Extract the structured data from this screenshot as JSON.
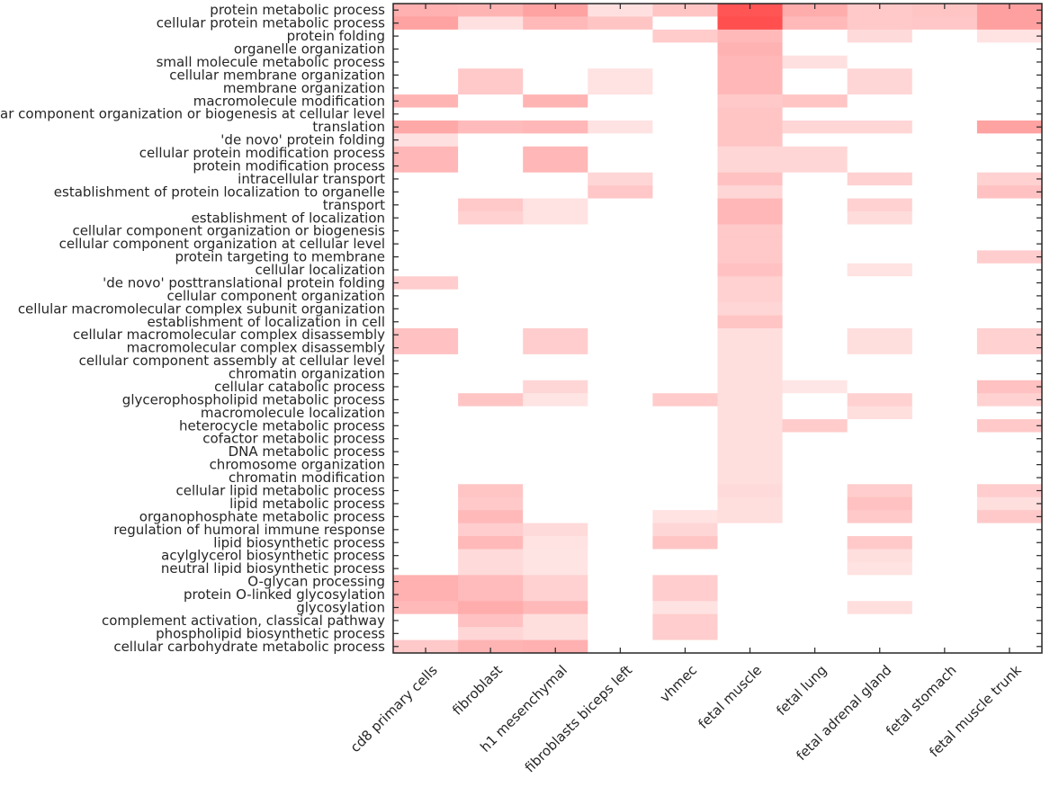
{
  "chart_data": {
    "type": "heatmap",
    "title": "",
    "xlabel": "",
    "ylabel": "",
    "colormap": {
      "low": "#ffffff",
      "high": "#ff3030"
    },
    "value_range": [
      0,
      1
    ],
    "columns": [
      "cd8 primary cells",
      "fibroblast",
      "h1 mesenchymal",
      "fibroblasts biceps left",
      "vhmec",
      "fetal muscle",
      "fetal lung",
      "fetal adrenal gland",
      "fetal stomach",
      "fetal muscle trunk"
    ],
    "rows": [
      "protein metabolic process",
      "cellular protein metabolic process",
      "protein folding",
      "organelle organization",
      "small molecule metabolic process",
      "cellular membrane organization",
      "membrane organization",
      "macromolecule modification",
      "cellular component organization or biogenesis at cellular level",
      "translation",
      "'de novo' protein folding",
      "cellular protein modification process",
      "protein modification process",
      "intracellular transport",
      "establishment of protein localization to organelle",
      "transport",
      "establishment of localization",
      "cellular component organization or biogenesis",
      "cellular component organization at cellular level",
      "protein targeting to membrane",
      "cellular localization",
      "'de novo' posttranslational protein folding",
      "cellular component organization",
      "cellular macromolecular complex subunit organization",
      "establishment of localization in cell",
      "cellular macromolecular complex disassembly",
      "macromolecular complex disassembly",
      "cellular component assembly at cellular level",
      "chromatin organization",
      "cellular catabolic process",
      "glycerophospholipid metabolic process",
      "macromolecule localization",
      "heterocycle metabolic process",
      "cofactor metabolic process",
      "DNA metabolic process",
      "chromosome organization",
      "chromatin modification",
      "cellular lipid metabolic process",
      "lipid metabolic process",
      "organophosphate metabolic process",
      "regulation of humoral immune response",
      "lipid biosynthetic process",
      "acylglycerol biosynthetic process",
      "neutral lipid biosynthetic process",
      "O-glycan processing",
      "protein O-linked glycosylation",
      "glycosylation",
      "complement activation, classical pathway",
      "phospholipid biosynthetic process",
      "cellular carbohydrate metabolic process"
    ],
    "values": [
      [
        0.38,
        0.36,
        0.45,
        0.15,
        0.28,
        0.82,
        0.4,
        0.26,
        0.28,
        0.46
      ],
      [
        0.45,
        0.15,
        0.34,
        0.28,
        0.0,
        0.85,
        0.34,
        0.26,
        0.27,
        0.46
      ],
      [
        0.0,
        0.0,
        0.0,
        0.0,
        0.25,
        0.34,
        0.0,
        0.18,
        0.0,
        0.14
      ],
      [
        0.0,
        0.0,
        0.0,
        0.0,
        0.0,
        0.37,
        0.0,
        0.0,
        0.0,
        0.0
      ],
      [
        0.0,
        0.0,
        0.0,
        0.0,
        0.0,
        0.35,
        0.15,
        0.0,
        0.0,
        0.0
      ],
      [
        0.0,
        0.26,
        0.0,
        0.14,
        0.0,
        0.35,
        0.0,
        0.2,
        0.0,
        0.0
      ],
      [
        0.0,
        0.26,
        0.0,
        0.14,
        0.0,
        0.35,
        0.0,
        0.2,
        0.0,
        0.0
      ],
      [
        0.36,
        0.0,
        0.36,
        0.0,
        0.0,
        0.26,
        0.28,
        0.0,
        0.0,
        0.0
      ],
      [
        0.0,
        0.0,
        0.0,
        0.0,
        0.0,
        0.28,
        0.0,
        0.0,
        0.0,
        0.0
      ],
      [
        0.42,
        0.33,
        0.35,
        0.14,
        0.0,
        0.28,
        0.2,
        0.2,
        0.0,
        0.45
      ],
      [
        0.15,
        0.0,
        0.0,
        0.0,
        0.0,
        0.28,
        0.0,
        0.0,
        0.0,
        0.0
      ],
      [
        0.35,
        0.0,
        0.35,
        0.0,
        0.0,
        0.2,
        0.2,
        0.0,
        0.0,
        0.0
      ],
      [
        0.35,
        0.0,
        0.35,
        0.0,
        0.0,
        0.2,
        0.2,
        0.0,
        0.0,
        0.0
      ],
      [
        0.0,
        0.0,
        0.0,
        0.2,
        0.0,
        0.3,
        0.0,
        0.22,
        0.0,
        0.22
      ],
      [
        0.0,
        0.0,
        0.0,
        0.27,
        0.0,
        0.2,
        0.0,
        0.0,
        0.0,
        0.3
      ],
      [
        0.0,
        0.26,
        0.14,
        0.0,
        0.0,
        0.35,
        0.0,
        0.22,
        0.0,
        0.0
      ],
      [
        0.0,
        0.22,
        0.14,
        0.0,
        0.0,
        0.35,
        0.0,
        0.17,
        0.0,
        0.0
      ],
      [
        0.0,
        0.0,
        0.0,
        0.0,
        0.0,
        0.26,
        0.0,
        0.0,
        0.0,
        0.0
      ],
      [
        0.0,
        0.0,
        0.0,
        0.0,
        0.0,
        0.26,
        0.0,
        0.0,
        0.0,
        0.0
      ],
      [
        0.0,
        0.0,
        0.0,
        0.0,
        0.0,
        0.26,
        0.0,
        0.0,
        0.0,
        0.24
      ],
      [
        0.0,
        0.0,
        0.0,
        0.0,
        0.0,
        0.3,
        0.0,
        0.14,
        0.0,
        0.0
      ],
      [
        0.24,
        0.0,
        0.0,
        0.0,
        0.0,
        0.22,
        0.0,
        0.0,
        0.0,
        0.0
      ],
      [
        0.0,
        0.0,
        0.0,
        0.0,
        0.0,
        0.22,
        0.0,
        0.0,
        0.0,
        0.0
      ],
      [
        0.0,
        0.0,
        0.0,
        0.0,
        0.0,
        0.2,
        0.0,
        0.0,
        0.0,
        0.0
      ],
      [
        0.0,
        0.0,
        0.0,
        0.0,
        0.0,
        0.28,
        0.0,
        0.0,
        0.0,
        0.0
      ],
      [
        0.3,
        0.0,
        0.24,
        0.0,
        0.0,
        0.16,
        0.0,
        0.16,
        0.0,
        0.22
      ],
      [
        0.3,
        0.0,
        0.24,
        0.0,
        0.0,
        0.16,
        0.0,
        0.16,
        0.0,
        0.22
      ],
      [
        0.0,
        0.0,
        0.0,
        0.0,
        0.0,
        0.16,
        0.0,
        0.0,
        0.0,
        0.0
      ],
      [
        0.0,
        0.0,
        0.0,
        0.0,
        0.0,
        0.16,
        0.0,
        0.0,
        0.0,
        0.0
      ],
      [
        0.0,
        0.0,
        0.2,
        0.0,
        0.0,
        0.16,
        0.12,
        0.0,
        0.0,
        0.3
      ],
      [
        0.0,
        0.28,
        0.13,
        0.0,
        0.25,
        0.16,
        0.0,
        0.22,
        0.0,
        0.22
      ],
      [
        0.0,
        0.0,
        0.0,
        0.0,
        0.0,
        0.16,
        0.0,
        0.16,
        0.0,
        0.0
      ],
      [
        0.0,
        0.0,
        0.0,
        0.0,
        0.0,
        0.16,
        0.25,
        0.0,
        0.0,
        0.26
      ],
      [
        0.0,
        0.0,
        0.0,
        0.0,
        0.0,
        0.16,
        0.0,
        0.0,
        0.0,
        0.0
      ],
      [
        0.0,
        0.0,
        0.0,
        0.0,
        0.0,
        0.16,
        0.0,
        0.0,
        0.0,
        0.0
      ],
      [
        0.0,
        0.0,
        0.0,
        0.0,
        0.0,
        0.16,
        0.0,
        0.0,
        0.0,
        0.0
      ],
      [
        0.0,
        0.0,
        0.0,
        0.0,
        0.0,
        0.16,
        0.0,
        0.0,
        0.0,
        0.0
      ],
      [
        0.0,
        0.28,
        0.0,
        0.0,
        0.0,
        0.18,
        0.0,
        0.24,
        0.0,
        0.24
      ],
      [
        0.0,
        0.26,
        0.0,
        0.0,
        0.0,
        0.16,
        0.0,
        0.3,
        0.0,
        0.16
      ],
      [
        0.0,
        0.34,
        0.0,
        0.0,
        0.14,
        0.16,
        0.0,
        0.26,
        0.0,
        0.26
      ],
      [
        0.0,
        0.24,
        0.18,
        0.0,
        0.2,
        0.0,
        0.0,
        0.0,
        0.0,
        0.0
      ],
      [
        0.0,
        0.34,
        0.14,
        0.0,
        0.28,
        0.0,
        0.0,
        0.26,
        0.0,
        0.0
      ],
      [
        0.0,
        0.18,
        0.13,
        0.0,
        0.0,
        0.0,
        0.0,
        0.16,
        0.0,
        0.0
      ],
      [
        0.0,
        0.18,
        0.13,
        0.0,
        0.0,
        0.0,
        0.0,
        0.14,
        0.0,
        0.0
      ],
      [
        0.38,
        0.33,
        0.22,
        0.0,
        0.24,
        0.0,
        0.0,
        0.0,
        0.0,
        0.0
      ],
      [
        0.38,
        0.33,
        0.22,
        0.0,
        0.24,
        0.0,
        0.0,
        0.0,
        0.0,
        0.0
      ],
      [
        0.34,
        0.4,
        0.34,
        0.0,
        0.14,
        0.0,
        0.0,
        0.16,
        0.0,
        0.0
      ],
      [
        0.0,
        0.3,
        0.16,
        0.0,
        0.24,
        0.0,
        0.0,
        0.0,
        0.0,
        0.0
      ],
      [
        0.0,
        0.2,
        0.16,
        0.0,
        0.24,
        0.0,
        0.0,
        0.0,
        0.0,
        0.0
      ],
      [
        0.26,
        0.36,
        0.38,
        0.0,
        0.0,
        0.0,
        0.0,
        0.0,
        0.0,
        0.0
      ]
    ],
    "grid": false,
    "legend": "none"
  }
}
